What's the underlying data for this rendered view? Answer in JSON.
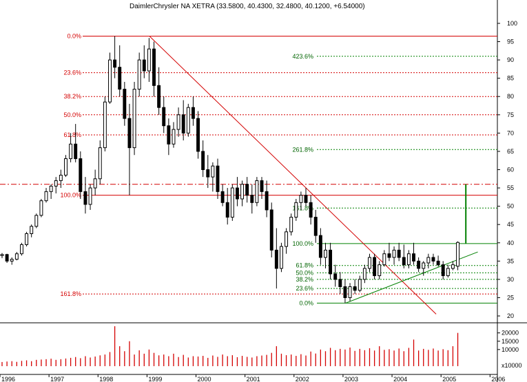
{
  "chart_data": {
    "type": "candlestick",
    "title": "DaimlerChrysler NA XETRA (33.5800, 40.4300, 32.4800, 40.1200, +6.54000)",
    "price_axis": {
      "ylim": [
        18.5,
        103
      ],
      "ticks": [
        20,
        25,
        30,
        35,
        40,
        45,
        50,
        55,
        60,
        65,
        70,
        75,
        80,
        85,
        90,
        95,
        100
      ]
    },
    "volume_axis": {
      "ylim": [
        0,
        24000
      ],
      "ticks": [
        10000,
        15000,
        20000
      ],
      "multiplier_label": "x10000"
    },
    "time_axis": {
      "range": [
        1996.0,
        2006.15
      ],
      "labels": [
        "1996",
        "1997",
        "1998",
        "1999",
        "2000",
        "2001",
        "2002",
        "2003",
        "2004",
        "2005",
        "2006"
      ]
    },
    "fib_upper": {
      "high": 96.5,
      "low": 53.0,
      "levels": [
        {
          "label": "0.0%",
          "value": 96.5
        },
        {
          "label": "23.6%",
          "value": 86.5
        },
        {
          "label": "38.2%",
          "value": 80.0
        },
        {
          "label": "50.0%",
          "value": 75.0
        },
        {
          "label": "61.8%",
          "value": 69.5
        },
        {
          "label": "100.0%",
          "value": 53.0
        },
        {
          "label": "161.8%",
          "value": 26.0
        }
      ]
    },
    "fib_lower": {
      "levels": [
        {
          "label": "0.0%",
          "value": 23.5
        },
        {
          "label": "23.6%",
          "value": 27.5
        },
        {
          "label": "38.2%",
          "value": 30.0
        },
        {
          "label": "50.0%",
          "value": 31.8
        },
        {
          "label": "61.8%",
          "value": 33.8
        },
        {
          "label": "100.0%",
          "value": 39.8
        },
        {
          "label": "161.8%",
          "value": 49.5
        },
        {
          "label": "261.8%",
          "value": 65.5
        },
        {
          "label": "423.6%",
          "value": 91.0
        }
      ]
    },
    "resistance_level": 56.0,
    "downtrend_line": {
      "from": [
        1999.05,
        96.5
      ],
      "to": [
        2004.9,
        20.5
      ]
    },
    "uptrend_line": {
      "from": [
        2003.05,
        23.5
      ],
      "to": [
        2005.75,
        37.5
      ]
    },
    "breakout_marker": {
      "x": 2005.45,
      "from": 39.8,
      "to": 56.0
    },
    "candles": [
      [
        1996.0,
        36.5,
        37.2,
        35.8,
        36.8
      ],
      [
        1996.1,
        36.8,
        37.0,
        34.5,
        35.0
      ],
      [
        1996.2,
        35.0,
        36.0,
        34.0,
        35.5
      ],
      [
        1996.3,
        35.5,
        37.5,
        35.2,
        37.0
      ],
      [
        1996.4,
        37.0,
        40.0,
        36.5,
        39.5
      ],
      [
        1996.5,
        39.5,
        43.0,
        39.0,
        42.5
      ],
      [
        1996.6,
        42.5,
        45.0,
        41.5,
        44.5
      ],
      [
        1996.7,
        44.5,
        48.0,
        44.0,
        47.5
      ],
      [
        1996.8,
        47.5,
        52.0,
        47.0,
        51.5
      ],
      [
        1996.9,
        51.5,
        55.0,
        51.0,
        54.0
      ],
      [
        1997.0,
        54.0,
        56.0,
        52.0,
        55.5
      ],
      [
        1997.1,
        55.5,
        58.0,
        53.5,
        57.0
      ],
      [
        1997.2,
        57.0,
        60.0,
        55.0,
        58.5
      ],
      [
        1997.3,
        58.5,
        64.0,
        58.0,
        63.0
      ],
      [
        1997.4,
        63.0,
        70.0,
        62.0,
        67.0
      ],
      [
        1997.5,
        67.0,
        72.5,
        62.0,
        63.0
      ],
      [
        1997.6,
        63.0,
        65.0,
        52.0,
        54.0
      ],
      [
        1997.7,
        54.0,
        58.0,
        48.0,
        50.5
      ],
      [
        1997.8,
        50.5,
        56.0,
        49.0,
        55.0
      ],
      [
        1997.9,
        55.0,
        60.0,
        53.0,
        57.5
      ],
      [
        1998.0,
        57.5,
        68.0,
        56.0,
        66.0
      ],
      [
        1998.1,
        66.0,
        80.0,
        65.0,
        78.5
      ],
      [
        1998.2,
        78.5,
        92.0,
        78.0,
        90.0
      ],
      [
        1998.3,
        90.0,
        96.5,
        85.0,
        88.0
      ],
      [
        1998.4,
        88.0,
        94.0,
        80.0,
        82.0
      ],
      [
        1998.5,
        82.0,
        84.0,
        72.0,
        74.0
      ],
      [
        1998.6,
        74.0,
        78.0,
        53.0,
        66.0
      ],
      [
        1998.7,
        66.0,
        84.0,
        64.0,
        82.0
      ],
      [
        1998.8,
        82.0,
        92.0,
        80.0,
        90.0
      ],
      [
        1998.9,
        90.0,
        94.0,
        85.0,
        87.0
      ],
      [
        1999.0,
        87.0,
        96.0,
        84.0,
        93.0
      ],
      [
        1999.1,
        93.0,
        95.0,
        80.0,
        83.0
      ],
      [
        1999.2,
        83.0,
        88.0,
        75.0,
        77.0
      ],
      [
        1999.3,
        77.0,
        80.0,
        70.0,
        72.0
      ],
      [
        1999.4,
        72.0,
        74.0,
        64.0,
        67.0
      ],
      [
        1999.5,
        67.0,
        73.0,
        66.0,
        71.0
      ],
      [
        1999.6,
        71.0,
        77.0,
        69.0,
        75.0
      ],
      [
        1999.7,
        75.0,
        79.0,
        68.0,
        70.0
      ],
      [
        1999.8,
        70.0,
        78.0,
        69.0,
        77.0
      ],
      [
        1999.9,
        77.0,
        80.0,
        72.0,
        74.0
      ],
      [
        2000.0,
        74.0,
        76.0,
        63.0,
        65.0
      ],
      [
        2000.1,
        65.0,
        68.0,
        58.0,
        60.0
      ],
      [
        2000.2,
        60.0,
        64.0,
        55.0,
        58.0
      ],
      [
        2000.3,
        58.0,
        62.0,
        54.0,
        61.0
      ],
      [
        2000.4,
        61.0,
        63.0,
        52.0,
        54.0
      ],
      [
        2000.5,
        54.0,
        56.0,
        50.0,
        51.0
      ],
      [
        2000.6,
        51.0,
        55.0,
        45.0,
        47.0
      ],
      [
        2000.7,
        47.0,
        56.0,
        46.0,
        55.0
      ],
      [
        2000.8,
        55.0,
        58.0,
        50.0,
        52.0
      ],
      [
        2000.9,
        52.0,
        57.0,
        50.0,
        56.0
      ],
      [
        2001.0,
        56.0,
        58.0,
        51.0,
        53.0
      ],
      [
        2001.1,
        53.0,
        56.0,
        48.0,
        51.0
      ],
      [
        2001.2,
        51.0,
        58.0,
        50.0,
        57.0
      ],
      [
        2001.3,
        57.0,
        58.0,
        52.0,
        54.0
      ],
      [
        2001.4,
        54.0,
        57.0,
        47.0,
        49.0
      ],
      [
        2001.5,
        49.0,
        51.0,
        36.0,
        38.0
      ],
      [
        2001.6,
        38.0,
        44.0,
        27.5,
        33.0
      ],
      [
        2001.7,
        33.0,
        40.0,
        32.0,
        39.0
      ],
      [
        2001.8,
        39.0,
        44.0,
        37.0,
        43.0
      ],
      [
        2001.9,
        43.0,
        48.0,
        42.0,
        47.0
      ],
      [
        2002.0,
        47.0,
        52.0,
        46.0,
        51.0
      ],
      [
        2002.1,
        51.0,
        54.0,
        49.0,
        53.0
      ],
      [
        2002.2,
        53.0,
        55.0,
        50.0,
        51.0
      ],
      [
        2002.3,
        51.0,
        53.0,
        45.0,
        47.0
      ],
      [
        2002.4,
        47.0,
        49.0,
        40.0,
        42.0
      ],
      [
        2002.5,
        42.0,
        44.0,
        34.0,
        36.0
      ],
      [
        2002.6,
        36.0,
        40.0,
        33.0,
        38.0
      ],
      [
        2002.7,
        38.0,
        40.0,
        30.0,
        31.5
      ],
      [
        2002.8,
        31.5,
        34.0,
        28.0,
        30.0
      ],
      [
        2002.9,
        30.0,
        32.0,
        26.0,
        28.0
      ],
      [
        2003.0,
        28.0,
        30.0,
        23.5,
        25.0
      ],
      [
        2003.1,
        25.0,
        29.0,
        24.0,
        28.0
      ],
      [
        2003.2,
        28.0,
        30.0,
        26.0,
        27.0
      ],
      [
        2003.3,
        27.0,
        31.0,
        26.5,
        30.0
      ],
      [
        2003.4,
        30.0,
        34.0,
        29.0,
        33.0
      ],
      [
        2003.5,
        33.0,
        37.0,
        32.0,
        36.0
      ],
      [
        2003.6,
        36.0,
        37.0,
        30.0,
        31.0
      ],
      [
        2003.7,
        31.0,
        35.0,
        30.0,
        34.0
      ],
      [
        2003.8,
        34.0,
        38.0,
        33.5,
        37.0
      ],
      [
        2003.9,
        37.0,
        40.0,
        35.0,
        36.0
      ],
      [
        2004.0,
        36.0,
        39.0,
        34.0,
        38.0
      ],
      [
        2004.1,
        38.0,
        40.0,
        35.0,
        36.0
      ],
      [
        2004.2,
        36.0,
        39.5,
        33.0,
        34.0
      ],
      [
        2004.3,
        34.0,
        38.0,
        33.0,
        37.0
      ],
      [
        2004.4,
        37.0,
        40.0,
        34.0,
        35.0
      ],
      [
        2004.5,
        35.0,
        36.0,
        32.0,
        33.0
      ],
      [
        2004.6,
        33.0,
        35.0,
        31.0,
        34.5
      ],
      [
        2004.7,
        34.5,
        37.0,
        33.0,
        36.0
      ],
      [
        2004.8,
        36.0,
        37.0,
        34.0,
        35.0
      ],
      [
        2004.9,
        35.0,
        36.5,
        33.5,
        34.0
      ],
      [
        2005.0,
        34.0,
        35.0,
        30.0,
        31.0
      ],
      [
        2005.1,
        31.0,
        34.0,
        30.5,
        33.0
      ],
      [
        2005.2,
        33.0,
        35.0,
        32.5,
        34.0
      ],
      [
        2005.3,
        33.6,
        40.4,
        32.5,
        40.1
      ]
    ],
    "volumes": [
      2500,
      2800,
      3000,
      2600,
      3200,
      3500,
      3000,
      3800,
      4000,
      4200,
      4500,
      3800,
      4200,
      4600,
      5000,
      5500,
      4800,
      6000,
      5200,
      5800,
      6500,
      7000,
      8500,
      24000,
      12000,
      9000,
      15000,
      7000,
      9500,
      7500,
      10000,
      8000,
      6500,
      7000,
      6000,
      7500,
      5500,
      6800,
      5200,
      6000,
      5800,
      6200,
      5000,
      6400,
      5600,
      7000,
      6000,
      6600,
      5400,
      6200,
      5600,
      5200,
      6000,
      6400,
      6800,
      8000,
      12000,
      7500,
      6600,
      7000,
      6200,
      7200,
      6400,
      8800,
      7600,
      10000,
      9000,
      11000,
      9600,
      10400,
      10000,
      11200,
      9200,
      10400,
      9600,
      10800,
      9400,
      12000,
      9800,
      10200,
      9400,
      10600,
      9000,
      11000,
      16000,
      9400,
      10400,
      9800,
      10600,
      9400,
      10200,
      9600,
      12000,
      20000
    ]
  }
}
